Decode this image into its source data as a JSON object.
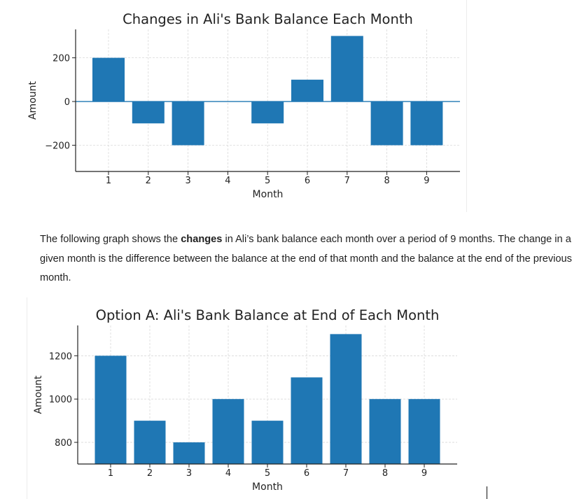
{
  "paragraph": {
    "part1": "The following graph shows the ",
    "bold": "changes",
    "part2": " in Ali’s bank balance each month over a period of 9 months. The change in a given month is the difference between the balance at the end of that month and the balance at the end of the previous month."
  },
  "colors": {
    "bar": "#1f77b4",
    "grid": "#d9d9d9",
    "axis": "#222222"
  },
  "chart_data": [
    {
      "type": "bar",
      "title": "Changes in Ali's Bank Balance Each Month",
      "xlabel": "Month",
      "ylabel": "Amount",
      "categories": [
        "1",
        "2",
        "3",
        "4",
        "5",
        "6",
        "7",
        "8",
        "9"
      ],
      "values": [
        200,
        -100,
        -200,
        0,
        -100,
        100,
        300,
        -200,
        -200
      ],
      "ylim": [
        -320,
        330
      ],
      "yticks": [
        -200,
        0,
        200
      ],
      "ytick_labels": [
        "−200",
        "0",
        "200"
      ],
      "zero_line": true,
      "grid": true
    },
    {
      "type": "bar",
      "title": "Option A: Ali's Bank Balance at End of Each Month",
      "xlabel": "Month",
      "ylabel": "Amount",
      "categories": [
        "1",
        "2",
        "3",
        "4",
        "5",
        "6",
        "7",
        "8",
        "9"
      ],
      "values": [
        1200,
        900,
        800,
        1000,
        900,
        1100,
        1300,
        1000,
        1000
      ],
      "ylim": [
        700,
        1340
      ],
      "yticks": [
        800,
        1000,
        1200
      ],
      "ytick_labels": [
        "800",
        "1000",
        "1200"
      ],
      "zero_line": false,
      "grid": true
    }
  ]
}
